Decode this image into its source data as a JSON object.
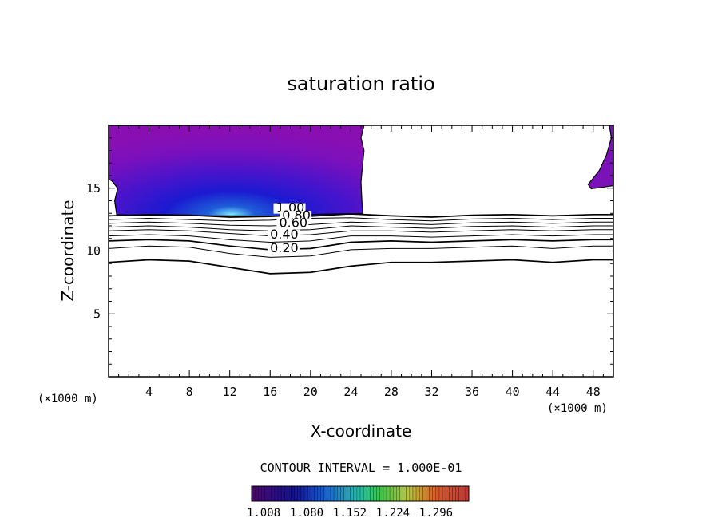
{
  "chart_data": {
    "type": "contour",
    "title": "saturation ratio",
    "xlabel": "X-coordinate",
    "ylabel": "Z-coordinate",
    "x_unit": "(×1000 m)",
    "z_unit": "(×1000 m)",
    "xlim": [
      0,
      50
    ],
    "ylim": [
      0,
      20
    ],
    "x_ticks": [
      4,
      8,
      12,
      16,
      20,
      24,
      28,
      32,
      36,
      40,
      44,
      48
    ],
    "y_ticks": [
      5,
      10,
      15
    ],
    "contour_interval_text": "CONTOUR INTERVAL = 1.000E-01",
    "contour_labels": [
      "1.00",
      "0.80",
      "0.60",
      "0.40",
      "0.20"
    ],
    "colorbar_ticks": [
      "1.008",
      "1.080",
      "1.152",
      "1.224",
      "1.296"
    ],
    "colorscale_range": [
      1.0,
      1.3
    ],
    "filled_regions": [
      {
        "name": "supersaturated-left",
        "x_range": [
          0,
          25.3
        ],
        "z_range": [
          12.8,
          20
        ]
      },
      {
        "name": "supersaturated-right",
        "x_range": [
          47.5,
          50
        ],
        "z_range": [
          14.9,
          20
        ]
      }
    ],
    "contours": [
      {
        "level": 1.0,
        "z": [
          12.8,
          12.9,
          12.85,
          12.7,
          12.75,
          12.9,
          12.95,
          12.8,
          12.7,
          12.85,
          12.9,
          12.8,
          12.9
        ]
      },
      {
        "level": 0.9,
        "z": [
          12.5,
          12.6,
          12.5,
          12.4,
          12.45,
          12.6,
          12.65,
          12.5,
          12.4,
          12.55,
          12.6,
          12.5,
          12.6
        ]
      },
      {
        "level": 0.8,
        "z": [
          12.2,
          12.3,
          12.2,
          12.05,
          12.0,
          12.1,
          12.3,
          12.2,
          12.1,
          12.25,
          12.3,
          12.2,
          12.3
        ]
      },
      {
        "level": 0.7,
        "z": [
          11.9,
          12.0,
          11.9,
          11.7,
          11.6,
          11.7,
          12.0,
          11.9,
          11.8,
          11.95,
          12.0,
          11.9,
          12.0
        ]
      },
      {
        "level": 0.6,
        "z": [
          11.6,
          11.7,
          11.6,
          11.4,
          11.2,
          11.3,
          11.6,
          11.6,
          11.5,
          11.6,
          11.7,
          11.6,
          11.7
        ]
      },
      {
        "level": 0.5,
        "z": [
          11.2,
          11.3,
          11.2,
          10.9,
          10.7,
          10.8,
          11.2,
          11.2,
          11.1,
          11.2,
          11.3,
          11.2,
          11.3
        ]
      },
      {
        "level": 0.4,
        "z": [
          10.8,
          10.9,
          10.8,
          10.4,
          10.1,
          10.2,
          10.7,
          10.8,
          10.7,
          10.8,
          10.9,
          10.8,
          10.9
        ]
      },
      {
        "level": 0.3,
        "z": [
          10.2,
          10.4,
          10.3,
          9.8,
          9.5,
          9.6,
          10.1,
          10.2,
          10.2,
          10.3,
          10.4,
          10.2,
          10.4
        ]
      },
      {
        "level": 0.2,
        "z": [
          9.1,
          9.3,
          9.2,
          8.7,
          8.2,
          8.3,
          8.8,
          9.1,
          9.1,
          9.2,
          9.3,
          9.1,
          9.3
        ]
      }
    ],
    "contour_x": [
      0,
      4,
      8,
      12,
      16,
      20,
      24,
      28,
      32,
      36,
      40,
      44,
      48
    ]
  },
  "colors": {
    "purple": "#7b12b8",
    "blue": "#1c1cc6",
    "light_blue": "#35d0ff",
    "colorbar_stops": [
      "#4a0a62",
      "#10109a",
      "#1c6ccf",
      "#21b8b0",
      "#43c447",
      "#b7c63a",
      "#d45b2d",
      "#c9322d"
    ]
  }
}
